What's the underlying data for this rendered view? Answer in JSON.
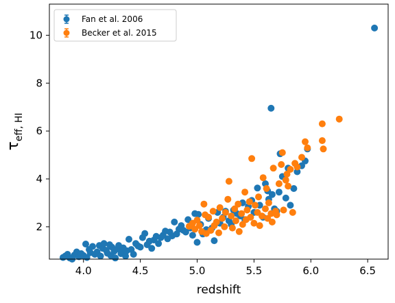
{
  "chart_data": {
    "type": "scatter",
    "title": "",
    "xlabel": "redshift",
    "ylabel": {
      "main": "τ",
      "sub": "eff, HI"
    },
    "xlim": [
      3.7,
      6.68
    ],
    "ylim": [
      0.65,
      11.3
    ],
    "xticks": [
      "4.0",
      "4.5",
      "5.0",
      "5.5",
      "6.0",
      "6.5"
    ],
    "yticks": [
      "2",
      "4",
      "6",
      "8",
      "10"
    ],
    "grid": false,
    "legend_position": "top-left",
    "series": [
      {
        "name": "Fan et al. 2006",
        "color": "#1f77b4",
        "points": [
          [
            3.82,
            0.72
          ],
          [
            3.84,
            0.78
          ],
          [
            3.86,
            0.85
          ],
          [
            3.88,
            0.7
          ],
          [
            3.9,
            0.65
          ],
          [
            3.92,
            0.82
          ],
          [
            3.94,
            0.95
          ],
          [
            3.96,
            0.75
          ],
          [
            3.98,
            0.88
          ],
          [
            4.0,
            0.8
          ],
          [
            4.02,
            1.28
          ],
          [
            4.03,
            0.72
          ],
          [
            4.05,
            1.05
          ],
          [
            4.06,
            0.92
          ],
          [
            4.08,
            1.18
          ],
          [
            4.1,
            0.85
          ],
          [
            4.12,
            0.95
          ],
          [
            4.14,
            1.22
          ],
          [
            4.15,
            0.78
          ],
          [
            4.17,
            1.1
          ],
          [
            4.18,
            1.3
          ],
          [
            4.2,
            1.02
          ],
          [
            4.21,
            0.9
          ],
          [
            4.23,
            1.25
          ],
          [
            4.24,
            0.8
          ],
          [
            4.25,
            1.15
          ],
          [
            4.27,
            0.98
          ],
          [
            4.28,
            0.7
          ],
          [
            4.3,
            1.08
          ],
          [
            4.31,
            1.22
          ],
          [
            4.33,
            0.88
          ],
          [
            4.35,
            1.12
          ],
          [
            4.37,
            0.78
          ],
          [
            4.38,
            1.0
          ],
          [
            4.4,
            1.48
          ],
          [
            4.42,
            1.05
          ],
          [
            4.44,
            0.85
          ],
          [
            4.46,
            1.3
          ],
          [
            4.48,
            1.2
          ],
          [
            4.5,
            1.15
          ],
          [
            4.52,
            1.55
          ],
          [
            4.54,
            1.72
          ],
          [
            4.56,
            1.25
          ],
          [
            4.58,
            1.4
          ],
          [
            4.6,
            1.1
          ],
          [
            4.62,
            1.45
          ],
          [
            4.64,
            1.6
          ],
          [
            4.66,
            1.3
          ],
          [
            4.68,
            1.55
          ],
          [
            4.7,
            1.65
          ],
          [
            4.72,
            1.82
          ],
          [
            4.74,
            1.5
          ],
          [
            4.76,
            1.78
          ],
          [
            4.78,
            1.62
          ],
          [
            4.8,
            2.2
          ],
          [
            4.82,
            1.7
          ],
          [
            4.84,
            1.9
          ],
          [
            4.86,
            2.05
          ],
          [
            4.88,
            1.85
          ],
          [
            4.9,
            1.78
          ],
          [
            4.92,
            2.3
          ],
          [
            4.94,
            1.95
          ],
          [
            4.96,
            1.65
          ],
          [
            4.98,
            2.55
          ],
          [
            5.0,
            1.35
          ],
          [
            5.01,
            2.52
          ],
          [
            5.03,
            2.1
          ],
          [
            5.05,
            1.7
          ],
          [
            5.08,
            1.88
          ],
          [
            5.1,
            2.35
          ],
          [
            5.13,
            1.95
          ],
          [
            5.15,
            1.42
          ],
          [
            5.18,
            2.6
          ],
          [
            5.2,
            2.15
          ],
          [
            5.23,
            2.4
          ],
          [
            5.25,
            2.65
          ],
          [
            5.28,
            2.25
          ],
          [
            5.3,
            2.1
          ],
          [
            5.32,
            2.7
          ],
          [
            5.35,
            2.55
          ],
          [
            5.38,
            2.45
          ],
          [
            5.4,
            3.0
          ],
          [
            5.42,
            2.3
          ],
          [
            5.45,
            2.85
          ],
          [
            5.48,
            3.1
          ],
          [
            5.5,
            2.6
          ],
          [
            5.53,
            3.62
          ],
          [
            5.55,
            2.9
          ],
          [
            5.58,
            2.4
          ],
          [
            5.6,
            3.8
          ],
          [
            5.62,
            3.5
          ],
          [
            5.63,
            3.15
          ],
          [
            5.65,
            6.95
          ],
          [
            5.66,
            3.35
          ],
          [
            5.68,
            2.75
          ],
          [
            5.7,
            2.65
          ],
          [
            5.72,
            3.45
          ],
          [
            5.73,
            5.05
          ],
          [
            5.75,
            4.1
          ],
          [
            5.78,
            3.2
          ],
          [
            5.8,
            4.45
          ],
          [
            5.82,
            2.9
          ],
          [
            5.85,
            3.6
          ],
          [
            5.88,
            4.3
          ],
          [
            5.92,
            4.55
          ],
          [
            5.95,
            4.75
          ],
          [
            5.97,
            5.25
          ],
          [
            6.56,
            10.3
          ]
        ]
      },
      {
        "name": "Becker et al. 2015",
        "color": "#ff7f0e",
        "points": [
          [
            4.93,
            2.02
          ],
          [
            4.96,
            2.15
          ],
          [
            4.98,
            1.9
          ],
          [
            5.0,
            2.28
          ],
          [
            5.02,
            2.05
          ],
          [
            5.04,
            1.8
          ],
          [
            5.06,
            2.95
          ],
          [
            5.07,
            2.5
          ],
          [
            5.08,
            1.72
          ],
          [
            5.1,
            2.4
          ],
          [
            5.12,
            1.85
          ],
          [
            5.14,
            2.65
          ],
          [
            5.15,
            2.05
          ],
          [
            5.17,
            2.2
          ],
          [
            5.19,
            1.75
          ],
          [
            5.2,
            2.8
          ],
          [
            5.22,
            2.35
          ],
          [
            5.24,
            2.0
          ],
          [
            5.25,
            2.6
          ],
          [
            5.27,
            3.15
          ],
          [
            5.28,
            3.9
          ],
          [
            5.3,
            2.45
          ],
          [
            5.31,
            1.95
          ],
          [
            5.33,
            2.75
          ],
          [
            5.34,
            2.25
          ],
          [
            5.36,
            2.95
          ],
          [
            5.37,
            1.8
          ],
          [
            5.39,
            2.55
          ],
          [
            5.4,
            2.1
          ],
          [
            5.42,
            3.45
          ],
          [
            5.43,
            2.3
          ],
          [
            5.44,
            2.7
          ],
          [
            5.46,
            3.05
          ],
          [
            5.47,
            2.4
          ],
          [
            5.48,
            4.85
          ],
          [
            5.5,
            2.15
          ],
          [
            5.51,
            2.9
          ],
          [
            5.53,
            2.6
          ],
          [
            5.54,
            3.25
          ],
          [
            5.55,
            2.05
          ],
          [
            5.57,
            2.45
          ],
          [
            5.58,
            4.05
          ],
          [
            5.6,
            2.75
          ],
          [
            5.61,
            3.6
          ],
          [
            5.62,
            2.35
          ],
          [
            5.63,
            3.0
          ],
          [
            5.65,
            2.55
          ],
          [
            5.66,
            2.2
          ],
          [
            5.67,
            4.45
          ],
          [
            5.69,
            2.65
          ],
          [
            5.7,
            2.5
          ],
          [
            5.72,
            3.8
          ],
          [
            5.74,
            4.6
          ],
          [
            5.75,
            5.1
          ],
          [
            5.76,
            2.7
          ],
          [
            5.78,
            3.95
          ],
          [
            5.79,
            4.2
          ],
          [
            5.8,
            3.7
          ],
          [
            5.82,
            4.4
          ],
          [
            5.84,
            2.6
          ],
          [
            5.86,
            4.65
          ],
          [
            5.88,
            4.5
          ],
          [
            5.92,
            4.9
          ],
          [
            5.95,
            5.55
          ],
          [
            5.97,
            5.3
          ],
          [
            6.1,
            6.3
          ],
          [
            6.1,
            5.6
          ],
          [
            6.11,
            5.25
          ],
          [
            6.25,
            6.5
          ]
        ]
      }
    ]
  }
}
